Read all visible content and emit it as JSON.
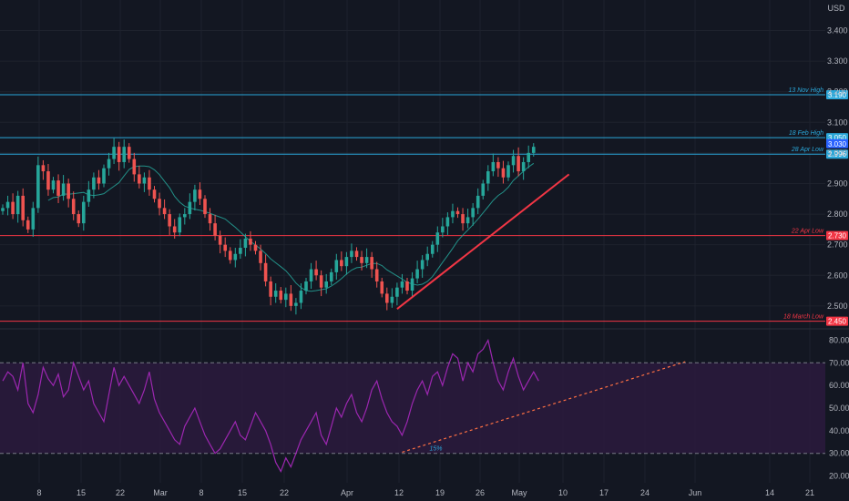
{
  "currency": "USD",
  "colors": {
    "background": "#131722",
    "grid": "#1e222d",
    "axis_text": "#b2b5be",
    "up": "#26a69a",
    "down": "#ef5350",
    "ma": "#26a69a",
    "resistance": "#2aa7d9",
    "support": "#f23645",
    "trendline": "#f23645",
    "rsi": "#9c27b0",
    "rsi_band": "#2a1a3c"
  },
  "chart_data": [
    {
      "type": "candlestick",
      "y_ticks": [
        "3.400",
        "3.300",
        "3.200",
        "3.100",
        "3.000",
        "2.900",
        "2.800",
        "2.700",
        "2.600",
        "2.500"
      ],
      "ylim": [
        2.44,
        3.47
      ],
      "x_ticks": [
        "8",
        "15",
        "22",
        "Mar",
        "8",
        "15",
        "22",
        "Apr",
        "12",
        "19",
        "26",
        "May",
        "10",
        "17",
        "24",
        "Jun",
        "14",
        "21"
      ],
      "price_levels": [
        {
          "label": "13 Nov High",
          "value": "3.190",
          "kind": "resistance"
        },
        {
          "label": "18 Feb High",
          "value": "3.050",
          "kind": "resistance"
        },
        {
          "label": "",
          "value": "3.030",
          "kind": "current"
        },
        {
          "label": "28 Apr Low",
          "value": "2.996",
          "kind": "resistance"
        },
        {
          "label": "22 Apr Low",
          "value": "2.730",
          "kind": "support"
        },
        {
          "label": "18 March Low",
          "value": "2.450",
          "kind": "support"
        }
      ],
      "closes": [
        2.82,
        2.84,
        2.8,
        2.86,
        2.78,
        2.75,
        2.82,
        2.96,
        2.94,
        2.88,
        2.91,
        2.86,
        2.9,
        2.85,
        2.8,
        2.77,
        2.84,
        2.88,
        2.92,
        2.9,
        2.95,
        2.98,
        3.02,
        2.97,
        3.02,
        2.98,
        2.93,
        2.9,
        2.92,
        2.88,
        2.85,
        2.82,
        2.8,
        2.76,
        2.74,
        2.79,
        2.8,
        2.84,
        2.88,
        2.85,
        2.8,
        2.77,
        2.73,
        2.7,
        2.68,
        2.65,
        2.67,
        2.69,
        2.72,
        2.7,
        2.68,
        2.64,
        2.58,
        2.53,
        2.55,
        2.52,
        2.54,
        2.5,
        2.51,
        2.55,
        2.58,
        2.62,
        2.6,
        2.56,
        2.58,
        2.61,
        2.65,
        2.63,
        2.66,
        2.68,
        2.66,
        2.64,
        2.66,
        2.62,
        2.58,
        2.54,
        2.51,
        2.53,
        2.56,
        2.58,
        2.55,
        2.59,
        2.62,
        2.65,
        2.67,
        2.7,
        2.74,
        2.76,
        2.79,
        2.81,
        2.8,
        2.77,
        2.79,
        2.82,
        2.86,
        2.9,
        2.94,
        2.97,
        2.95,
        2.92,
        2.96,
        2.99,
        2.94,
        2.97,
        3.0,
        3.02
      ],
      "trendline": {
        "from_index": 78,
        "from_value": 2.49,
        "to_index": 112,
        "to_value": 2.93
      },
      "moving_average_period": 10
    },
    {
      "type": "line",
      "series_kind": "rsi",
      "y_ticks": [
        "80.00",
        "70.00",
        "60.00",
        "50.00",
        "40.00",
        "30.00",
        "20.00"
      ],
      "ylim": [
        17,
        83
      ],
      "bands": [
        30,
        70
      ],
      "annotation": "15%",
      "trendline": {
        "from_index": 79,
        "from_value": 30.5,
        "to_index": 135,
        "to_value": 70.5
      },
      "values": [
        62,
        66,
        64,
        58,
        70,
        52,
        48,
        56,
        68,
        63,
        60,
        65,
        55,
        58,
        70,
        64,
        58,
        62,
        52,
        48,
        44,
        56,
        68,
        60,
        64,
        60,
        56,
        52,
        58,
        66,
        54,
        48,
        44,
        40,
        36,
        34,
        42,
        46,
        50,
        44,
        38,
        34,
        30,
        32,
        36,
        40,
        44,
        38,
        36,
        42,
        48,
        44,
        40,
        34,
        26,
        22,
        28,
        24,
        30,
        36,
        40,
        44,
        48,
        38,
        34,
        42,
        50,
        46,
        52,
        56,
        48,
        44,
        50,
        58,
        62,
        54,
        48,
        44,
        42,
        38,
        44,
        52,
        58,
        62,
        56,
        64,
        66,
        60,
        68,
        74,
        72,
        62,
        70,
        66,
        74,
        76,
        80,
        70,
        62,
        58,
        66,
        72,
        64,
        58,
        62,
        66,
        62
      ]
    }
  ]
}
